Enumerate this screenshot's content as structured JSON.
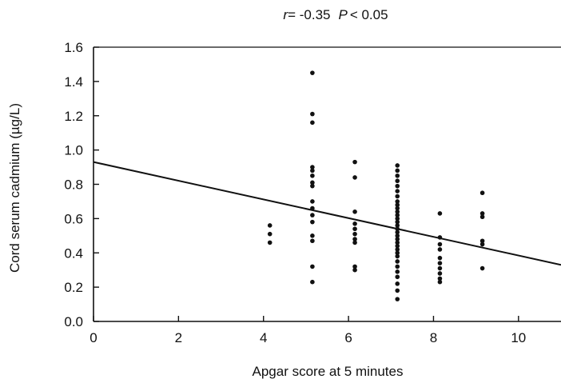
{
  "chart_data": {
    "type": "scatter",
    "annotation": {
      "r_label": "r",
      "r_value": "= -0.35",
      "p_label": "P",
      "p_value": "< 0.05"
    },
    "xlabel": "Apgar score at 5 minutes",
    "ylabel": "Cord serum cadmium (µg/L)",
    "xlim": [
      0,
      11
    ],
    "ylim": [
      0,
      1.6
    ],
    "xticks": [
      "0",
      "2",
      "4",
      "6",
      "8",
      "10"
    ],
    "yticks": [
      "0.0",
      "0.2",
      "0.4",
      "0.6",
      "0.8",
      "1.0",
      "1.2",
      "1.4",
      "1.6"
    ],
    "grid": false,
    "points": [
      {
        "x": 4.15,
        "y": 0.56
      },
      {
        "x": 4.15,
        "y": 0.51
      },
      {
        "x": 4.15,
        "y": 0.46
      },
      {
        "x": 5.15,
        "y": 1.45
      },
      {
        "x": 5.15,
        "y": 1.21
      },
      {
        "x": 5.15,
        "y": 1.16
      },
      {
        "x": 5.15,
        "y": 0.9
      },
      {
        "x": 5.15,
        "y": 0.88
      },
      {
        "x": 5.15,
        "y": 0.85
      },
      {
        "x": 5.15,
        "y": 0.81
      },
      {
        "x": 5.15,
        "y": 0.79
      },
      {
        "x": 5.15,
        "y": 0.7
      },
      {
        "x": 5.15,
        "y": 0.66
      },
      {
        "x": 5.15,
        "y": 0.62
      },
      {
        "x": 5.15,
        "y": 0.58
      },
      {
        "x": 5.15,
        "y": 0.5
      },
      {
        "x": 5.15,
        "y": 0.47
      },
      {
        "x": 5.15,
        "y": 0.32
      },
      {
        "x": 5.15,
        "y": 0.23
      },
      {
        "x": 6.15,
        "y": 0.93
      },
      {
        "x": 6.15,
        "y": 0.84
      },
      {
        "x": 6.15,
        "y": 0.64
      },
      {
        "x": 6.15,
        "y": 0.57
      },
      {
        "x": 6.15,
        "y": 0.54
      },
      {
        "x": 6.15,
        "y": 0.51
      },
      {
        "x": 6.15,
        "y": 0.48
      },
      {
        "x": 6.15,
        "y": 0.46
      },
      {
        "x": 6.15,
        "y": 0.32
      },
      {
        "x": 6.15,
        "y": 0.3
      },
      {
        "x": 7.15,
        "y": 0.91
      },
      {
        "x": 7.15,
        "y": 0.88
      },
      {
        "x": 7.15,
        "y": 0.85
      },
      {
        "x": 7.15,
        "y": 0.82
      },
      {
        "x": 7.15,
        "y": 0.79
      },
      {
        "x": 7.15,
        "y": 0.76
      },
      {
        "x": 7.15,
        "y": 0.73
      },
      {
        "x": 7.15,
        "y": 0.7
      },
      {
        "x": 7.15,
        "y": 0.68
      },
      {
        "x": 7.15,
        "y": 0.66
      },
      {
        "x": 7.15,
        "y": 0.64
      },
      {
        "x": 7.15,
        "y": 0.62
      },
      {
        "x": 7.15,
        "y": 0.6
      },
      {
        "x": 7.15,
        "y": 0.58
      },
      {
        "x": 7.15,
        "y": 0.56
      },
      {
        "x": 7.15,
        "y": 0.54
      },
      {
        "x": 7.15,
        "y": 0.52
      },
      {
        "x": 7.15,
        "y": 0.5
      },
      {
        "x": 7.15,
        "y": 0.48
      },
      {
        "x": 7.15,
        "y": 0.46
      },
      {
        "x": 7.15,
        "y": 0.44
      },
      {
        "x": 7.15,
        "y": 0.42
      },
      {
        "x": 7.15,
        "y": 0.4
      },
      {
        "x": 7.15,
        "y": 0.38
      },
      {
        "x": 7.15,
        "y": 0.35
      },
      {
        "x": 7.15,
        "y": 0.32
      },
      {
        "x": 7.15,
        "y": 0.29
      },
      {
        "x": 7.15,
        "y": 0.26
      },
      {
        "x": 7.15,
        "y": 0.22
      },
      {
        "x": 7.15,
        "y": 0.18
      },
      {
        "x": 7.15,
        "y": 0.13
      },
      {
        "x": 8.15,
        "y": 0.63
      },
      {
        "x": 8.15,
        "y": 0.49
      },
      {
        "x": 8.15,
        "y": 0.45
      },
      {
        "x": 8.15,
        "y": 0.42
      },
      {
        "x": 8.15,
        "y": 0.37
      },
      {
        "x": 8.15,
        "y": 0.34
      },
      {
        "x": 8.15,
        "y": 0.31
      },
      {
        "x": 8.15,
        "y": 0.28
      },
      {
        "x": 8.15,
        "y": 0.25
      },
      {
        "x": 8.15,
        "y": 0.23
      },
      {
        "x": 9.15,
        "y": 0.75
      },
      {
        "x": 9.15,
        "y": 0.63
      },
      {
        "x": 9.15,
        "y": 0.61
      },
      {
        "x": 9.15,
        "y": 0.47
      },
      {
        "x": 9.15,
        "y": 0.45
      },
      {
        "x": 9.15,
        "y": 0.31
      }
    ],
    "regression_line": {
      "x": [
        0,
        11
      ],
      "y": [
        0.93,
        0.33
      ]
    }
  }
}
